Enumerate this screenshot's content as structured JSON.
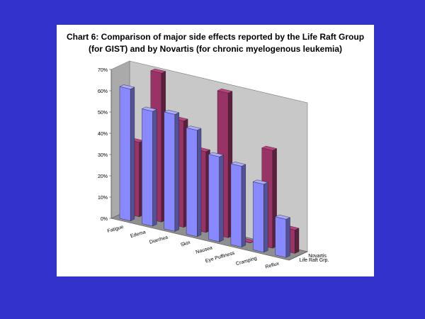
{
  "chart_data": {
    "type": "bar",
    "title_line1": "Chart 6: Comparison of major side effects reported by the Life Raft Group",
    "title_line2": "(for GIST) and by Novartis (for chronic myelogenous leukemia)",
    "categories": [
      "Fatigue",
      "Edema",
      "Diarrhea",
      "Skin",
      "Nausea",
      "Eye Puffiness",
      "Cramping",
      "Reflux"
    ],
    "series": [
      {
        "name": "Life Raft Grp.",
        "values": [
          62,
          54,
          55,
          50,
          40,
          38,
          32,
          18
        ],
        "color": "#8888ff"
      },
      {
        "name": "Novartis",
        "values": [
          35,
          70,
          50,
          38,
          68,
          0,
          46,
          11
        ],
        "color": "#993366"
      }
    ],
    "y_ticks": [
      "0%",
      "10%",
      "20%",
      "30%",
      "40%",
      "50%",
      "60%",
      "70%"
    ],
    "ylim": [
      0,
      70
    ],
    "grid": false,
    "legend": "series labels on depth axis (right)"
  }
}
